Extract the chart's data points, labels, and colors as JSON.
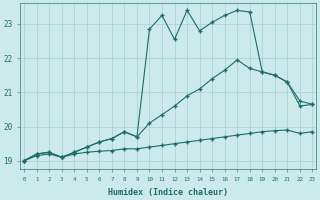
{
  "xlabel": "Humidex (Indice chaleur)",
  "background_color": "#cdeaea",
  "grid_color": "#a8d0d0",
  "line_color": "#1e6b6b",
  "x_ticks": [
    0,
    1,
    2,
    3,
    4,
    5,
    6,
    7,
    8,
    9,
    10,
    11,
    12,
    13,
    14,
    15,
    16,
    17,
    18,
    19,
    20,
    21,
    22,
    23
  ],
  "y_ticks": [
    19,
    20,
    21,
    22,
    23
  ],
  "xlim": [
    -0.3,
    23.3
  ],
  "ylim": [
    18.75,
    23.6
  ],
  "curve_bottom_x": [
    0,
    1,
    2,
    3,
    4,
    5,
    6,
    7,
    8,
    9,
    10,
    11,
    12,
    13,
    14,
    15,
    16,
    17,
    18,
    19,
    20,
    21,
    22,
    23
  ],
  "curve_bottom_y": [
    19.0,
    19.15,
    19.2,
    19.1,
    19.2,
    19.25,
    19.28,
    19.3,
    19.35,
    19.35,
    19.4,
    19.45,
    19.5,
    19.55,
    19.6,
    19.65,
    19.7,
    19.75,
    19.8,
    19.85,
    19.88,
    19.9,
    19.8,
    19.85
  ],
  "curve_middle_x": [
    0,
    1,
    2,
    3,
    4,
    5,
    6,
    7,
    8,
    9,
    10,
    11,
    12,
    13,
    14,
    15,
    16,
    17,
    18,
    19,
    20,
    21,
    22,
    23
  ],
  "curve_middle_y": [
    19.0,
    19.2,
    19.25,
    19.1,
    19.25,
    19.4,
    19.55,
    19.65,
    19.85,
    19.7,
    20.1,
    20.35,
    20.6,
    20.9,
    21.1,
    21.4,
    21.65,
    21.95,
    21.7,
    21.6,
    21.5,
    21.3,
    20.6,
    20.65
  ],
  "curve_top_x": [
    0,
    1,
    2,
    3,
    4,
    5,
    6,
    7,
    8,
    9,
    10,
    11,
    12,
    13,
    14,
    15,
    16,
    17,
    18,
    19,
    20,
    21,
    22,
    23
  ],
  "curve_top_y": [
    19.0,
    19.2,
    19.25,
    19.1,
    19.25,
    19.4,
    19.55,
    19.65,
    19.85,
    19.7,
    22.85,
    23.25,
    22.55,
    23.4,
    22.8,
    23.05,
    23.25,
    23.4,
    23.35,
    21.6,
    21.5,
    21.3,
    20.75,
    20.65
  ],
  "markersize": 2.0
}
